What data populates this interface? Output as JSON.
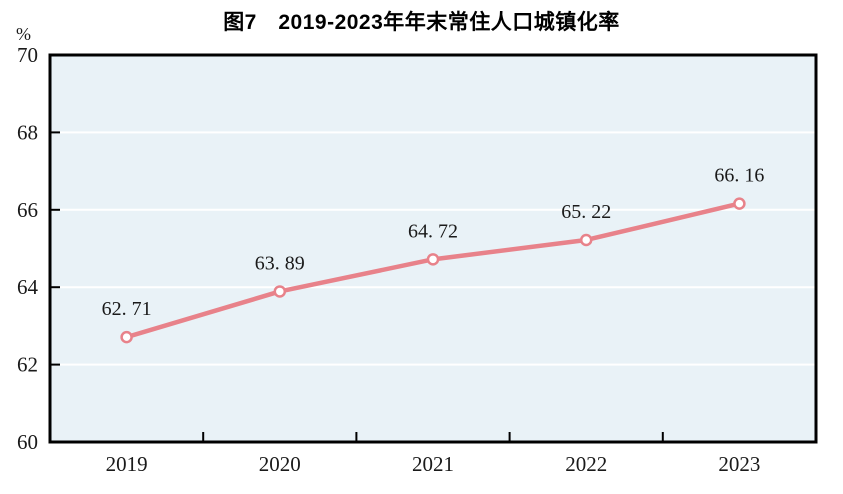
{
  "figure": {
    "title": "图7　2019-2023年年末常住人口城镇化率",
    "unit_label": "%"
  },
  "chart_data": {
    "type": "line",
    "title": "图7　2019-2023年年末常住人口城镇化率",
    "ylabel_unit": "%",
    "categories": [
      "2019",
      "2020",
      "2021",
      "2022",
      "2023"
    ],
    "values": [
      62.71,
      63.89,
      64.72,
      65.22,
      66.16
    ],
    "point_labels": [
      "62. 71",
      "63. 89",
      "64. 72",
      "65. 22",
      "66. 16"
    ],
    "ylim": [
      60,
      70
    ],
    "y_ticks": [
      60,
      62,
      64,
      66,
      68,
      70
    ],
    "grid": "horizontal-white-lines",
    "legend_position": "none",
    "colors": {
      "line": "#e8828a",
      "marker_fill": "#ffffff",
      "plot_background": "#e9f2f7",
      "grid_line": "#ffffff",
      "axis": "#000000",
      "text": "#1a1a1a"
    }
  }
}
